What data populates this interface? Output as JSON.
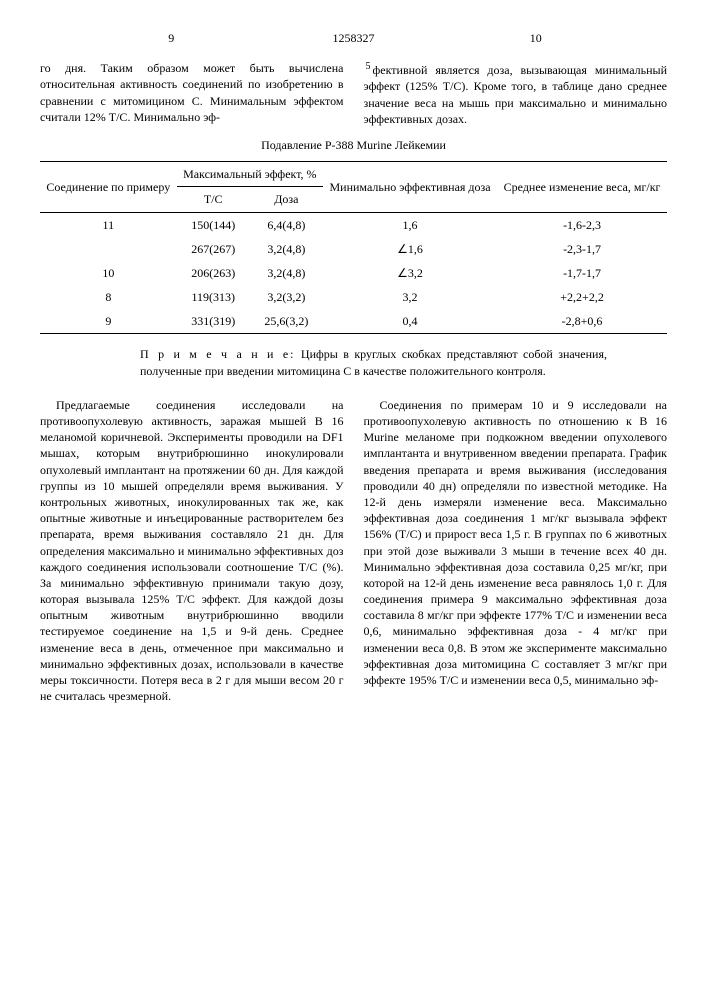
{
  "header": {
    "doc_number": "1258327",
    "left_col_num": "9",
    "right_col_num": "10"
  },
  "intro": {
    "left": "го дня. Таким образом может быть вычислена относительная активность соединений по изобретению в сравнении с митомицином С. Минимальным эффектом считали 12% Т/С. Минимально эф-",
    "right": "фективной является доза, вызывающая минимальный эффект (125% Т/С). Кроме того, в таблице дано среднее значение веса на мышь при максимально и минимально эффективных дозах."
  },
  "table": {
    "title": "Подавление P-388 Murine Лейкемии",
    "headers": {
      "compound": "Соединение по примеру",
      "max_effect": "Максимальный эффект, %",
      "tc": "Т/С",
      "dose": "Доза",
      "min_dose": "Минимально эффективная доза",
      "weight": "Среднее изменение веса, мг/кг"
    },
    "rows": [
      {
        "c": "11",
        "tc": "150(144)",
        "dose": "6,4(4,8)",
        "min": "1,6",
        "w": "-1,6-2,3"
      },
      {
        "c": "",
        "tc": "267(267)",
        "dose": "3,2(4,8)",
        "min": "∠1,6",
        "w": "-2,3-1,7"
      },
      {
        "c": "10",
        "tc": "206(263)",
        "dose": "3,2(4,8)",
        "min": "∠3,2",
        "w": "-1,7-1,7"
      },
      {
        "c": "8",
        "tc": "119(313)",
        "dose": "3,2(3,2)",
        "min": "3,2",
        "w": "+2,2+2,2"
      },
      {
        "c": "9",
        "tc": "331(319)",
        "dose": "25,6(3,2)",
        "min": "0,4",
        "w": "-2,8+0,6"
      }
    ]
  },
  "note": {
    "label": "П р и м е ч а н и е:",
    "text": "Цифры в круглых скобках представляют собой значения, полученные при введении митомицина С в качестве положительного контроля."
  },
  "body": {
    "left": "Предлагаемые соединения исследовали на противоопухолевую активность, заражая мышей В 16 меланомой коричневой. Эксперименты проводили на DF1 мышах, которым внутрибрюшинно инокулировали опухолевый имплантант на протяжении 60 дн. Для каждой группы из 10 мышей определяли время выживания. У контрольных животных, инокулированных так же, как опытные животные и инъецированные растворителем без препарата, время выживания составляло 21 дн. Для определения максимально и минимально эффективных доз каждого соединения использовали соотношение Т/С (%). За минимально эффективную принимали такую дозу, которая вызывала 125% Т/С эффект. Для каждой дозы опытным животным внутрибрюшинно вводили тестируемое соединение на 1,5 и 9-й день. Среднее изменение веса в день, отмеченное при максимально и минимально эффективных дозах, использовали в качестве меры токсичности. Потеря веса в 2 г для мыши весом 20 г не считалась чрезмерной.",
    "right": "Соединения по примерам 10 и 9 исследовали на противоопухолевую активность по отношению к В 16 Murine меланоме при подкожном введении опухолевого имплантанта и внутривенном введении препарата. График введения препарата и время выживания (исследования проводили 40 дн) определяли по известной методике. На 12-й день измеряли изменение веса. Максимально эффективная доза соединения 1 мг/кг вызывала эффект 156% (Т/С) и прирост веса 1,5 г. В группах по 6 животных при этой дозе выживали 3 мыши в течение всех 40 дн. Минимально эффективная доза составила 0,25 мг/кг, при которой на 12-й день изменение веса равнялось 1,0 г. Для соединения примера 9 максимально эффективная доза составила 8 мг/кг при эффекте 177% Т/С и изменении веса 0,6, минимально эффективная доза - 4 мг/кг при изменении веса 0,8. В этом же эксперименте максимально эффективная доза митомицина С составляет 3 мг/кг при эффекте 195% Т/С и изменении веса 0,5, минимально эф-"
  },
  "line_markers": {
    "m5": "5",
    "m35": "35",
    "m40": "40",
    "m45": "45",
    "m50": "50",
    "m55": "55"
  }
}
